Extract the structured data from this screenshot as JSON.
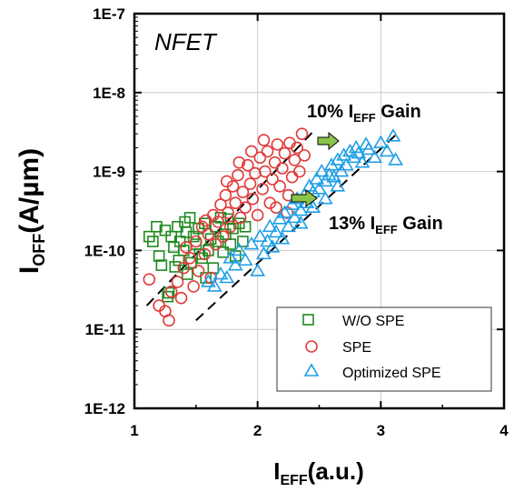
{
  "chart_data": {
    "type": "scatter",
    "panel_label": "NFET",
    "xlabel": {
      "main": "I",
      "sub": "EFF",
      "rest": "(a.u.)"
    },
    "ylabel": {
      "main": "I",
      "sub": "OFF",
      "rest": "(A/µm)"
    },
    "xlim": [
      1,
      4
    ],
    "ylim": [
      1e-12,
      1e-07
    ],
    "yscale": "log",
    "x_ticks": [
      "1",
      "2",
      "3",
      "4"
    ],
    "y_ticks": [
      "1E-12",
      "1E-11",
      "1E-10",
      "1E-9",
      "1E-8",
      "1E-7"
    ],
    "grid": true,
    "legend_position": "bottom-right",
    "series": [
      {
        "name": "W/O SPE",
        "marker": "square",
        "color": "#1f8a1f",
        "points": [
          [
            1.12,
            1.5e-10
          ],
          [
            1.15,
            1.3e-10
          ],
          [
            1.18,
            2e-10
          ],
          [
            1.2,
            8.5e-11
          ],
          [
            1.22,
            6.5e-11
          ],
          [
            1.25,
            1.8e-10
          ],
          [
            1.27,
            2.6e-11
          ],
          [
            1.28,
            2.9e-11
          ],
          [
            1.3,
            1.5e-10
          ],
          [
            1.32,
            1.1e-10
          ],
          [
            1.33,
            6.2e-11
          ],
          [
            1.35,
            2e-10
          ],
          [
            1.37,
            1.3e-10
          ],
          [
            1.4,
            1e-10
          ],
          [
            1.41,
            2.3e-10
          ],
          [
            1.42,
            1.7e-10
          ],
          [
            1.43,
            5e-11
          ],
          [
            1.45,
            2.6e-10
          ],
          [
            1.46,
            7e-11
          ],
          [
            1.48,
            1.5e-10
          ],
          [
            1.5,
            1.2e-10
          ],
          [
            1.52,
            1.9e-10
          ],
          [
            1.55,
            8e-11
          ],
          [
            1.57,
            2.2e-10
          ],
          [
            1.6,
            1e-10
          ],
          [
            1.62,
            1.4e-10
          ],
          [
            1.64,
            6e-11
          ],
          [
            1.66,
            2e-10
          ],
          [
            1.68,
            1.3e-10
          ],
          [
            1.7,
            2.6e-10
          ],
          [
            1.72,
            9.5e-11
          ],
          [
            1.74,
            1.6e-10
          ],
          [
            1.76,
            2.5e-10
          ],
          [
            1.78,
            1.2e-10
          ],
          [
            1.8,
            1.9e-10
          ],
          [
            1.82,
            8.5e-11
          ],
          [
            1.85,
            2.2e-10
          ],
          [
            1.88,
            1.3e-10
          ],
          [
            1.9,
            2e-10
          ],
          [
            1.53,
            9e-11
          ],
          [
            1.36,
            7.5e-11
          ],
          [
            1.58,
            4.5e-11
          ]
        ]
      },
      {
        "name": "SPE",
        "marker": "circle",
        "color": "#e03c3c",
        "points": [
          [
            1.12,
            4.3e-11
          ],
          [
            1.2,
            2e-11
          ],
          [
            1.25,
            1.7e-11
          ],
          [
            1.28,
            1.3e-11
          ],
          [
            1.3,
            3e-11
          ],
          [
            1.35,
            4e-11
          ],
          [
            1.38,
            2.5e-11
          ],
          [
            1.4,
            6e-11
          ],
          [
            1.42,
            1.1e-10
          ],
          [
            1.45,
            8e-11
          ],
          [
            1.48,
            3.5e-11
          ],
          [
            1.5,
            1.3e-10
          ],
          [
            1.52,
            5.5e-11
          ],
          [
            1.55,
            2e-10
          ],
          [
            1.57,
            9e-11
          ],
          [
            1.6,
            1.6e-10
          ],
          [
            1.62,
            4.5e-11
          ],
          [
            1.64,
            2.8e-10
          ],
          [
            1.66,
            1.2e-10
          ],
          [
            1.68,
            2.3e-10
          ],
          [
            1.7,
            3.8e-10
          ],
          [
            1.72,
            1.5e-10
          ],
          [
            1.74,
            5e-10
          ],
          [
            1.76,
            3e-10
          ],
          [
            1.78,
            2e-10
          ],
          [
            1.8,
            6.5e-10
          ],
          [
            1.82,
            4e-10
          ],
          [
            1.84,
            9e-10
          ],
          [
            1.86,
            2.6e-10
          ],
          [
            1.88,
            5.5e-10
          ],
          [
            1.9,
            3.5e-10
          ],
          [
            1.92,
            1.2e-09
          ],
          [
            1.94,
            7e-10
          ],
          [
            1.96,
            4.5e-10
          ],
          [
            1.98,
            9.5e-10
          ],
          [
            2.0,
            2.8e-10
          ],
          [
            2.02,
            1.5e-09
          ],
          [
            2.04,
            6e-10
          ],
          [
            2.06,
            1e-09
          ],
          [
            2.08,
            1.8e-09
          ],
          [
            2.1,
            4e-10
          ],
          [
            2.12,
            8e-10
          ],
          [
            2.14,
            1.3e-09
          ],
          [
            2.16,
            2.2e-09
          ],
          [
            2.18,
            6.5e-10
          ],
          [
            2.2,
            1.1e-09
          ],
          [
            2.22,
            1.7e-09
          ],
          [
            2.24,
            3e-10
          ],
          [
            2.26,
            2.3e-09
          ],
          [
            2.28,
            8.5e-10
          ],
          [
            2.3,
            1.4e-09
          ],
          [
            2.32,
            2e-09
          ],
          [
            2.34,
            1e-09
          ],
          [
            2.36,
            3e-09
          ],
          [
            2.38,
            1.6e-09
          ],
          [
            1.95,
            1.8e-09
          ],
          [
            2.05,
            2.5e-09
          ],
          [
            1.85,
            1.3e-09
          ],
          [
            2.15,
            3.5e-10
          ],
          [
            1.75,
            7.5e-10
          ],
          [
            1.58,
            2.4e-10
          ],
          [
            2.25,
            5e-10
          ]
        ]
      },
      {
        "name": "Optimized SPE",
        "marker": "triangle",
        "color": "#1e9fe6",
        "points": [
          [
            1.6,
            4e-11
          ],
          [
            1.65,
            3.5e-11
          ],
          [
            1.7,
            5e-11
          ],
          [
            1.75,
            4.5e-11
          ],
          [
            1.78,
            8e-11
          ],
          [
            1.82,
            6.5e-11
          ],
          [
            1.85,
            1e-10
          ],
          [
            1.9,
            7.5e-11
          ],
          [
            1.95,
            1.2e-10
          ],
          [
            2.0,
            5.5e-11
          ],
          [
            2.02,
            1.5e-10
          ],
          [
            2.05,
            9e-11
          ],
          [
            2.08,
            1.3e-10
          ],
          [
            2.1,
            2e-10
          ],
          [
            2.12,
            1.1e-10
          ],
          [
            2.15,
            1.7e-10
          ],
          [
            2.18,
            2.5e-10
          ],
          [
            2.2,
            1.4e-10
          ],
          [
            2.22,
            3e-10
          ],
          [
            2.25,
            2e-10
          ],
          [
            2.28,
            3.8e-10
          ],
          [
            2.3,
            2.6e-10
          ],
          [
            2.32,
            4.5e-10
          ],
          [
            2.35,
            3.2e-10
          ],
          [
            2.38,
            5e-10
          ],
          [
            2.4,
            4e-10
          ],
          [
            2.42,
            6.5e-10
          ],
          [
            2.45,
            5.5e-10
          ],
          [
            2.48,
            8e-10
          ],
          [
            2.5,
            6e-10
          ],
          [
            2.52,
            1e-09
          ],
          [
            2.55,
            7.5e-10
          ],
          [
            2.58,
            9e-10
          ],
          [
            2.6,
            1.2e-09
          ],
          [
            2.62,
            8.5e-10
          ],
          [
            2.65,
            1.4e-09
          ],
          [
            2.68,
            1e-09
          ],
          [
            2.7,
            1.6e-09
          ],
          [
            2.72,
            1.2e-09
          ],
          [
            2.75,
            1.8e-09
          ],
          [
            2.78,
            1.5e-09
          ],
          [
            2.8,
            2e-09
          ],
          [
            2.82,
            1.7e-09
          ],
          [
            2.85,
            1.3e-09
          ],
          [
            2.88,
            2.2e-09
          ],
          [
            2.9,
            1.9e-09
          ],
          [
            2.95,
            1.5e-09
          ],
          [
            3.0,
            2.3e-09
          ],
          [
            3.05,
            1.8e-09
          ],
          [
            3.1,
            2.8e-09
          ],
          [
            3.12,
            1.4e-09
          ],
          [
            2.45,
            3.5e-10
          ],
          [
            2.35,
            2.2e-10
          ],
          [
            2.55,
            4.5e-10
          ],
          [
            2.65,
            6.5e-10
          ]
        ]
      }
    ],
    "trend_lines": [
      {
        "style": "dashed",
        "points": [
          [
            1.1,
            2e-11
          ],
          [
            2.45,
            3.2e-09
          ]
        ]
      },
      {
        "style": "dashed",
        "points": [
          [
            1.5,
            1.3e-11
          ],
          [
            3.15,
            3.2e-09
          ]
        ]
      }
    ],
    "annotations": [
      {
        "main": "10% I",
        "sub": "EFF",
        "rest": " Gain"
      },
      {
        "main": "13% I",
        "sub": "EFF",
        "rest": " Gain"
      }
    ],
    "arrow_color": "#8bc34a"
  }
}
